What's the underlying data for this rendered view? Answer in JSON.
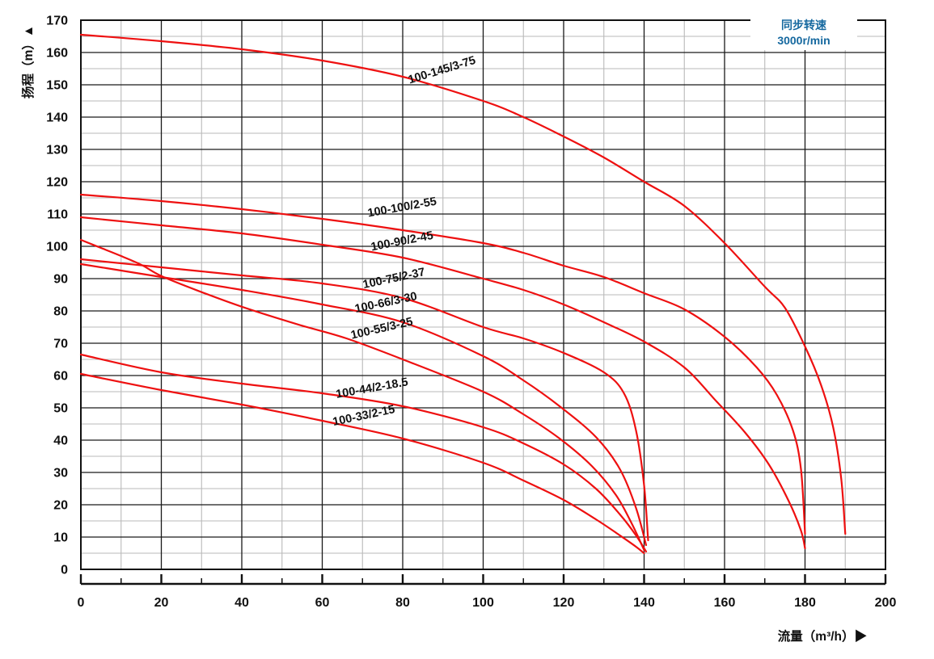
{
  "legend": {
    "line1": "同步转速",
    "line2": "3000r/min",
    "color": "#15689f"
  },
  "axes": {
    "x": {
      "title": "流量（m³/h）▶",
      "min": 0,
      "max": 200,
      "major_step": 20,
      "minor_step": 10,
      "tick_labels": [
        "0",
        "20",
        "40",
        "60",
        "80",
        "100",
        "120",
        "140",
        "160",
        "180",
        "200"
      ]
    },
    "y": {
      "title": "扬程（m）▲",
      "min": 0,
      "max": 170,
      "major_step": 10,
      "minor_step": 5,
      "tick_labels": [
        "0",
        "10",
        "20",
        "30",
        "40",
        "50",
        "60",
        "70",
        "80",
        "90",
        "100",
        "110",
        "120",
        "130",
        "140",
        "150",
        "160",
        "170"
      ]
    }
  },
  "colors": {
    "curve": "#ee1010",
    "grid_major": "#1a1a1a",
    "grid_minor": "#b9b9b9",
    "frame": "#111111",
    "text": "#111111"
  },
  "chart_data": {
    "type": "line",
    "title": "",
    "xlabel": "流量（m³/h）",
    "ylabel": "扬程（m）",
    "xlim": [
      0,
      200
    ],
    "ylim": [
      0,
      170
    ],
    "grid": "major-black-10m-20q, minor-gray-5m-10q",
    "legend_position": "top-right",
    "legend_text": [
      "同步转速",
      "3000r/min"
    ],
    "series": [
      {
        "name": "100-145/3-75",
        "label_pos": [
          90,
          153.5
        ],
        "label_angle": -17,
        "points": [
          [
            0,
            165.5
          ],
          [
            20,
            163.5
          ],
          [
            40,
            161
          ],
          [
            60,
            157.5
          ],
          [
            80,
            152.5
          ],
          [
            100,
            145
          ],
          [
            110,
            140
          ],
          [
            120,
            134
          ],
          [
            130,
            127.5
          ],
          [
            140,
            120
          ],
          [
            150,
            112.5
          ],
          [
            160,
            101
          ],
          [
            170,
            87.5
          ],
          [
            175,
            81
          ],
          [
            180,
            69
          ],
          [
            184,
            57
          ],
          [
            187,
            44
          ],
          [
            189,
            28
          ],
          [
            190,
            11
          ]
        ]
      },
      {
        "name": "100-100/2-55",
        "label_pos": [
          80,
          111
        ],
        "label_angle": -10,
        "points": [
          [
            0,
            116
          ],
          [
            20,
            114
          ],
          [
            40,
            111.5
          ],
          [
            60,
            108.5
          ],
          [
            80,
            105
          ],
          [
            100,
            101
          ],
          [
            110,
            98
          ],
          [
            120,
            94
          ],
          [
            130,
            90.5
          ],
          [
            140,
            85.5
          ],
          [
            150,
            80.5
          ],
          [
            160,
            72
          ],
          [
            168,
            62.5
          ],
          [
            173,
            54
          ],
          [
            177,
            43
          ],
          [
            179,
            31
          ],
          [
            180,
            11
          ]
        ]
      },
      {
        "name": "100-90/2-45",
        "label_pos": [
          80,
          100.5
        ],
        "label_angle": -11,
        "points": [
          [
            0,
            109
          ],
          [
            20,
            106.5
          ],
          [
            40,
            104
          ],
          [
            60,
            100.5
          ],
          [
            80,
            96.5
          ],
          [
            100,
            90
          ],
          [
            110,
            86.5
          ],
          [
            120,
            82
          ],
          [
            130,
            76.5
          ],
          [
            140,
            70.5
          ],
          [
            150,
            62.5
          ],
          [
            158,
            52
          ],
          [
            165,
            42.5
          ],
          [
            171,
            32.5
          ],
          [
            176,
            21
          ],
          [
            179,
            12
          ],
          [
            180,
            6.5
          ]
        ]
      },
      {
        "name": "100-75/2-37",
        "label_pos": [
          78,
          89
        ],
        "label_angle": -12,
        "points": [
          [
            0,
            96
          ],
          [
            20,
            93.5
          ],
          [
            40,
            91
          ],
          [
            60,
            88.5
          ],
          [
            80,
            84
          ],
          [
            100,
            75
          ],
          [
            110,
            71.5
          ],
          [
            120,
            67
          ],
          [
            130,
            61
          ],
          [
            135,
            54.5
          ],
          [
            138,
            43
          ],
          [
            140,
            26
          ],
          [
            141,
            9
          ]
        ]
      },
      {
        "name": "100-66/3-30",
        "label_pos": [
          76,
          81.5
        ],
        "label_angle": -12,
        "points": [
          [
            0,
            94.5
          ],
          [
            10,
            92.5
          ],
          [
            20,
            90.5
          ],
          [
            40,
            86.5
          ],
          [
            60,
            82
          ],
          [
            80,
            76.5
          ],
          [
            100,
            66
          ],
          [
            110,
            58.5
          ],
          [
            119,
            50.5
          ],
          [
            128,
            41
          ],
          [
            134,
            31
          ],
          [
            138,
            19
          ],
          [
            140.5,
            7.5
          ]
        ]
      },
      {
        "name": "100-55/3-25",
        "label_pos": [
          75,
          73.5
        ],
        "label_angle": -13,
        "points": [
          [
            0,
            102
          ],
          [
            5,
            99.5
          ],
          [
            10,
            97
          ],
          [
            15,
            94.3
          ],
          [
            20,
            90.8
          ],
          [
            29,
            86.3
          ],
          [
            40,
            81.3
          ],
          [
            54,
            75.8
          ],
          [
            66,
            71.5
          ],
          [
            80,
            65
          ],
          [
            100,
            55
          ],
          [
            110,
            48
          ],
          [
            119,
            40.5
          ],
          [
            127,
            32
          ],
          [
            133,
            23
          ],
          [
            137,
            14
          ],
          [
            140,
            6
          ]
        ]
      },
      {
        "name": "100-44/2-18.5",
        "label_pos": [
          72.5,
          55
        ],
        "label_angle": -10,
        "points": [
          [
            0,
            66.5
          ],
          [
            20,
            61
          ],
          [
            40,
            57.5
          ],
          [
            60,
            54.5
          ],
          [
            80,
            50.5
          ],
          [
            100,
            44
          ],
          [
            110,
            39
          ],
          [
            120,
            32.5
          ],
          [
            128,
            25
          ],
          [
            134,
            17
          ],
          [
            138,
            10.5
          ],
          [
            140.5,
            5.5
          ]
        ]
      },
      {
        "name": "100-33/2-15",
        "label_pos": [
          70.5,
          46.5
        ],
        "label_angle": -12,
        "points": [
          [
            0,
            60.5
          ],
          [
            20,
            55.5
          ],
          [
            40,
            51
          ],
          [
            60,
            46
          ],
          [
            80,
            40.5
          ],
          [
            100,
            33
          ],
          [
            110,
            27.5
          ],
          [
            120,
            21.5
          ],
          [
            128,
            15.5
          ],
          [
            134,
            10.5
          ],
          [
            138,
            7
          ],
          [
            140,
            5
          ]
        ]
      }
    ]
  }
}
